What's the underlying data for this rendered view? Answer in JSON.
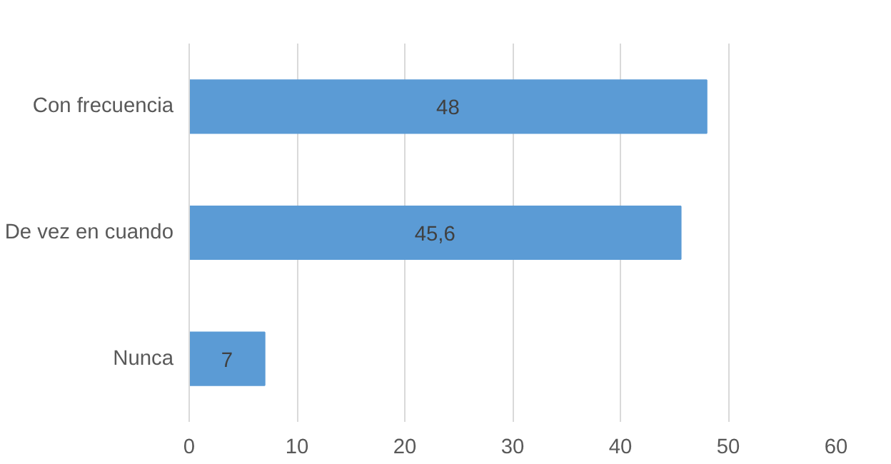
{
  "chart_data": {
    "type": "bar",
    "orientation": "horizontal",
    "categories": [
      "Con frecuencia",
      "De vez en cuando",
      "Nunca"
    ],
    "values": [
      48,
      45.6,
      7
    ],
    "value_labels": [
      "48",
      "45,6",
      "7"
    ],
    "color": "#5b9bd5",
    "xlim": [
      0,
      60
    ],
    "xticks": [
      0,
      10,
      20,
      30,
      40,
      50,
      60
    ],
    "grid": "x"
  }
}
